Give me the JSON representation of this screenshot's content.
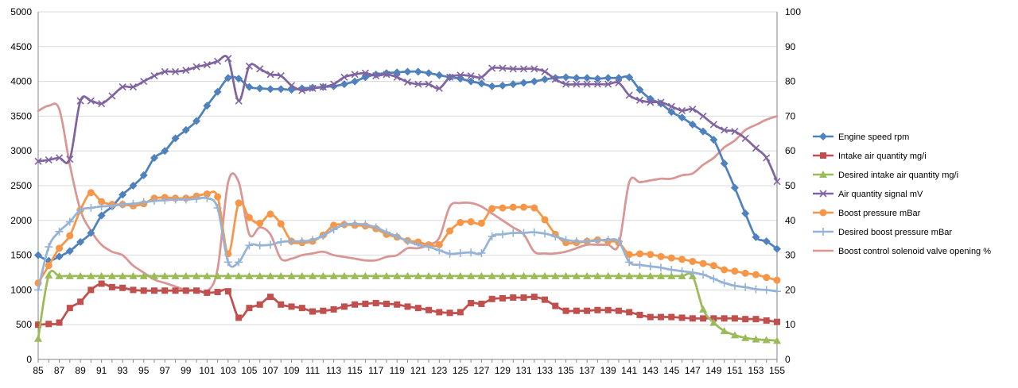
{
  "chart_data": {
    "type": "line",
    "grid": true,
    "legend_position": "right",
    "x": [
      85,
      86,
      87,
      88,
      89,
      90,
      91,
      92,
      93,
      94,
      95,
      96,
      97,
      98,
      99,
      100,
      101,
      102,
      103,
      104,
      105,
      106,
      107,
      108,
      109,
      110,
      111,
      112,
      113,
      114,
      115,
      116,
      117,
      118,
      119,
      120,
      121,
      122,
      123,
      124,
      125,
      126,
      127,
      128,
      129,
      130,
      131,
      132,
      133,
      134,
      135,
      136,
      137,
      138,
      139,
      140,
      141,
      142,
      143,
      144,
      145,
      146,
      147,
      148,
      149,
      150,
      151,
      152,
      153,
      154,
      155
    ],
    "x_ticks": [
      "85",
      "87",
      "89",
      "91",
      "93",
      "95",
      "97",
      "99",
      "101",
      "103",
      "105",
      "107",
      "109",
      "111",
      "113",
      "115",
      "117",
      "119",
      "121",
      "123",
      "125",
      "127",
      "129",
      "131",
      "133",
      "135",
      "137",
      "139",
      "141",
      "143",
      "145",
      "147",
      "149",
      "151",
      "153",
      "155"
    ],
    "y_left": {
      "min": 0,
      "max": 5000,
      "step": 500,
      "ticks": [
        "0",
        "500",
        "1000",
        "1500",
        "2000",
        "2500",
        "3000",
        "3500",
        "4000",
        "4500",
        "5000"
      ]
    },
    "y_right": {
      "min": 0,
      "max": 100,
      "step": 10,
      "ticks": [
        "0",
        "10",
        "20",
        "30",
        "40",
        "50",
        "60",
        "70",
        "80",
        "90",
        "100"
      ]
    },
    "series": [
      {
        "name": "Engine speed rpm",
        "axis": "left",
        "color": "#4F81BD",
        "marker": "diamond",
        "x": [
          85,
          86,
          87,
          88,
          89,
          90,
          91,
          92,
          93,
          94,
          95,
          96,
          97,
          98,
          99,
          100,
          101,
          102,
          103,
          104,
          105,
          106,
          107,
          108,
          109,
          110,
          111,
          112,
          113,
          114,
          115,
          116,
          117,
          118,
          119,
          120,
          121,
          122,
          123,
          124,
          125,
          126,
          127,
          128,
          129,
          130,
          131,
          132,
          133,
          134,
          135,
          136,
          137,
          138,
          139,
          140,
          141,
          142,
          143,
          144,
          145,
          146,
          147,
          148,
          149,
          150,
          151,
          152,
          153,
          154,
          155
        ],
        "values": [
          1500,
          1420,
          1480,
          1560,
          1690,
          1820,
          2070,
          2200,
          2370,
          2500,
          2650,
          2900,
          3000,
          3180,
          3300,
          3430,
          3650,
          3850,
          4050,
          4040,
          3920,
          3900,
          3890,
          3890,
          3880,
          3900,
          3910,
          3920,
          3930,
          3960,
          4000,
          4060,
          4100,
          4120,
          4130,
          4140,
          4140,
          4120,
          4090,
          4060,
          4040,
          4000,
          3970,
          3930,
          3940,
          3960,
          3980,
          4000,
          4030,
          4050,
          4060,
          4050,
          4050,
          4040,
          4050,
          4050,
          4060,
          3880,
          3750,
          3680,
          3560,
          3480,
          3380,
          3280,
          3160,
          2820,
          2470,
          2100,
          1760,
          1700,
          1590
        ]
      },
      {
        "name": "Intake air quantity mg/i",
        "axis": "left",
        "color": "#C0504D",
        "marker": "square",
        "x": [
          85,
          86,
          87,
          88,
          89,
          90,
          91,
          92,
          93,
          94,
          95,
          96,
          97,
          98,
          99,
          100,
          101,
          102,
          103,
          104,
          105,
          106,
          107,
          108,
          109,
          110,
          111,
          112,
          113,
          114,
          115,
          116,
          117,
          118,
          119,
          120,
          121,
          122,
          123,
          124,
          125,
          126,
          127,
          128,
          129,
          130,
          131,
          132,
          133,
          134,
          135,
          136,
          137,
          138,
          139,
          140,
          141,
          142,
          143,
          144,
          145,
          146,
          147,
          148,
          149,
          150,
          151,
          152,
          153,
          154,
          155
        ],
        "values": [
          500,
          510,
          530,
          740,
          830,
          1000,
          1090,
          1040,
          1030,
          1000,
          990,
          990,
          990,
          990,
          990,
          990,
          960,
          970,
          980,
          600,
          740,
          790,
          900,
          790,
          760,
          740,
          690,
          700,
          720,
          760,
          790,
          800,
          810,
          800,
          790,
          760,
          740,
          710,
          680,
          670,
          680,
          810,
          800,
          870,
          880,
          890,
          890,
          900,
          860,
          770,
          700,
          700,
          700,
          710,
          710,
          700,
          680,
          640,
          610,
          610,
          610,
          600,
          590,
          590,
          590,
          590,
          590,
          580,
          580,
          560,
          540
        ]
      },
      {
        "name": "Desired intake air quantity mg/i",
        "axis": "left",
        "color": "#9BBB59",
        "marker": "triangle",
        "x": [
          85,
          86,
          87,
          88,
          89,
          90,
          91,
          92,
          93,
          94,
          95,
          96,
          97,
          98,
          99,
          100,
          101,
          102,
          103,
          104,
          105,
          106,
          107,
          108,
          109,
          110,
          111,
          112,
          113,
          114,
          115,
          116,
          117,
          118,
          119,
          120,
          121,
          122,
          123,
          124,
          125,
          126,
          127,
          128,
          129,
          130,
          131,
          132,
          133,
          134,
          135,
          136,
          137,
          138,
          139,
          140,
          141,
          142,
          143,
          144,
          145,
          146,
          147,
          148,
          149,
          150,
          151,
          152,
          153,
          154,
          155
        ],
        "values": [
          300,
          1210,
          1200,
          1200,
          1200,
          1200,
          1200,
          1200,
          1200,
          1200,
          1200,
          1200,
          1200,
          1200,
          1200,
          1200,
          1200,
          1200,
          1200,
          1200,
          1200,
          1200,
          1200,
          1200,
          1200,
          1200,
          1200,
          1200,
          1200,
          1200,
          1200,
          1200,
          1200,
          1200,
          1200,
          1200,
          1200,
          1200,
          1200,
          1200,
          1200,
          1200,
          1200,
          1200,
          1200,
          1200,
          1200,
          1200,
          1200,
          1200,
          1200,
          1200,
          1200,
          1200,
          1200,
          1200,
          1200,
          1200,
          1200,
          1200,
          1200,
          1200,
          1200,
          720,
          530,
          410,
          350,
          310,
          290,
          280,
          270
        ]
      },
      {
        "name": "Air quantity signal mV",
        "axis": "left",
        "color": "#8064A2",
        "marker": "x",
        "x": [
          85,
          86,
          87,
          88,
          89,
          90,
          91,
          92,
          93,
          94,
          95,
          96,
          97,
          98,
          99,
          100,
          101,
          102,
          103,
          104,
          105,
          106,
          107,
          108,
          109,
          110,
          111,
          112,
          113,
          114,
          115,
          116,
          117,
          118,
          119,
          120,
          121,
          122,
          123,
          124,
          125,
          126,
          127,
          128,
          129,
          130,
          131,
          132,
          133,
          134,
          135,
          136,
          137,
          138,
          139,
          140,
          141,
          142,
          143,
          144,
          145,
          146,
          147,
          148,
          149,
          150,
          151,
          152,
          153,
          154,
          155
        ],
        "values": [
          2850,
          2870,
          2900,
          2880,
          3720,
          3720,
          3680,
          3790,
          3920,
          3920,
          4000,
          4080,
          4140,
          4140,
          4160,
          4210,
          4240,
          4290,
          4330,
          3720,
          4220,
          4180,
          4100,
          4080,
          3940,
          3870,
          3900,
          3920,
          3960,
          4060,
          4100,
          4120,
          4080,
          4100,
          4060,
          3990,
          3960,
          3960,
          3900,
          4060,
          4090,
          4080,
          4060,
          4190,
          4190,
          4180,
          4180,
          4180,
          4140,
          4030,
          3960,
          3960,
          3960,
          3960,
          3960,
          3980,
          3800,
          3730,
          3700,
          3700,
          3640,
          3580,
          3600,
          3500,
          3380,
          3300,
          3280,
          3180,
          3040,
          2900,
          2560
        ]
      },
      {
        "name": "Boost pressure mBar",
        "axis": "left",
        "color": "#F79646",
        "marker": "circle",
        "x": [
          85,
          86,
          87,
          88,
          89,
          90,
          91,
          92,
          93,
          94,
          95,
          96,
          97,
          98,
          99,
          100,
          101,
          102,
          103,
          104,
          105,
          106,
          107,
          108,
          109,
          110,
          111,
          112,
          113,
          114,
          115,
          116,
          117,
          118,
          119,
          120,
          121,
          122,
          123,
          124,
          125,
          126,
          127,
          128,
          129,
          130,
          131,
          132,
          133,
          134,
          135,
          136,
          137,
          138,
          139,
          140,
          141,
          142,
          143,
          144,
          145,
          146,
          147,
          148,
          149,
          150,
          151,
          152,
          153,
          154,
          155
        ],
        "values": [
          1100,
          1350,
          1600,
          1780,
          2150,
          2400,
          2270,
          2230,
          2230,
          2210,
          2240,
          2320,
          2330,
          2320,
          2320,
          2350,
          2380,
          2340,
          1520,
          2250,
          2040,
          1960,
          2090,
          1950,
          1700,
          1680,
          1700,
          1790,
          1930,
          1940,
          1930,
          1920,
          1880,
          1800,
          1760,
          1710,
          1690,
          1650,
          1650,
          1850,
          1970,
          1980,
          1960,
          2170,
          2180,
          2190,
          2190,
          2180,
          2010,
          1800,
          1680,
          1680,
          1700,
          1720,
          1700,
          1680,
          1510,
          1520,
          1510,
          1480,
          1460,
          1440,
          1410,
          1380,
          1350,
          1290,
          1270,
          1240,
          1220,
          1180,
          1140
        ]
      },
      {
        "name": "Desired boost pressure mBar",
        "axis": "left",
        "color": "#95B3D7",
        "marker": "plus",
        "x": [
          85,
          86,
          87,
          88,
          89,
          90,
          91,
          92,
          93,
          94,
          95,
          96,
          97,
          98,
          99,
          100,
          101,
          102,
          103,
          104,
          105,
          106,
          107,
          108,
          109,
          110,
          111,
          112,
          113,
          114,
          115,
          116,
          117,
          118,
          119,
          120,
          121,
          122,
          123,
          124,
          125,
          126,
          127,
          128,
          129,
          130,
          131,
          132,
          133,
          134,
          135,
          136,
          137,
          138,
          139,
          140,
          141,
          142,
          143,
          144,
          145,
          146,
          147,
          148,
          149,
          150,
          151,
          152,
          153,
          154,
          155
        ],
        "values": [
          1000,
          1620,
          1840,
          1980,
          2150,
          2180,
          2200,
          2210,
          2230,
          2240,
          2260,
          2280,
          2290,
          2300,
          2300,
          2310,
          2320,
          2180,
          1400,
          1400,
          1640,
          1640,
          1650,
          1690,
          1700,
          1700,
          1720,
          1780,
          1870,
          1940,
          1950,
          1940,
          1900,
          1830,
          1770,
          1700,
          1650,
          1620,
          1570,
          1520,
          1530,
          1540,
          1530,
          1770,
          1800,
          1820,
          1820,
          1830,
          1810,
          1770,
          1720,
          1700,
          1700,
          1710,
          1720,
          1700,
          1400,
          1360,
          1340,
          1320,
          1290,
          1270,
          1250,
          1220,
          1160,
          1100,
          1060,
          1040,
          1010,
          1000,
          980
        ]
      },
      {
        "name": "Boost control solenoid valve opening %",
        "axis": "right",
        "color": "#D99694",
        "marker": "none",
        "x": [
          85,
          86,
          87,
          88,
          89,
          90,
          91,
          92,
          93,
          94,
          95,
          96,
          97,
          98,
          99,
          100,
          101,
          102,
          103,
          104,
          105,
          106,
          107,
          108,
          109,
          110,
          111,
          112,
          113,
          114,
          115,
          116,
          117,
          118,
          119,
          120,
          121,
          122,
          123,
          124,
          125,
          126,
          127,
          128,
          129,
          130,
          131,
          132,
          133,
          134,
          135,
          136,
          137,
          138,
          139,
          140,
          141,
          142,
          143,
          144,
          145,
          146,
          147,
          148,
          149,
          150,
          151,
          152,
          153,
          154,
          155
        ],
        "values": [
          71.5,
          73,
          72,
          56,
          43,
          37,
          33,
          31,
          30,
          27,
          25,
          23,
          22,
          21,
          20,
          20,
          19.6,
          26,
          51,
          51,
          36,
          38,
          36,
          29,
          29,
          30,
          30.5,
          31,
          30,
          29.5,
          29,
          28.5,
          28.5,
          29.5,
          30,
          32,
          32,
          33,
          35,
          44,
          45,
          45,
          44,
          42,
          40,
          38,
          36,
          31,
          30.5,
          30.5,
          31,
          32,
          33,
          33,
          33,
          33,
          51,
          51,
          51.5,
          52,
          52,
          53,
          53.5,
          56,
          58,
          61,
          63,
          66,
          67.5,
          69,
          70
        ]
      }
    ]
  }
}
